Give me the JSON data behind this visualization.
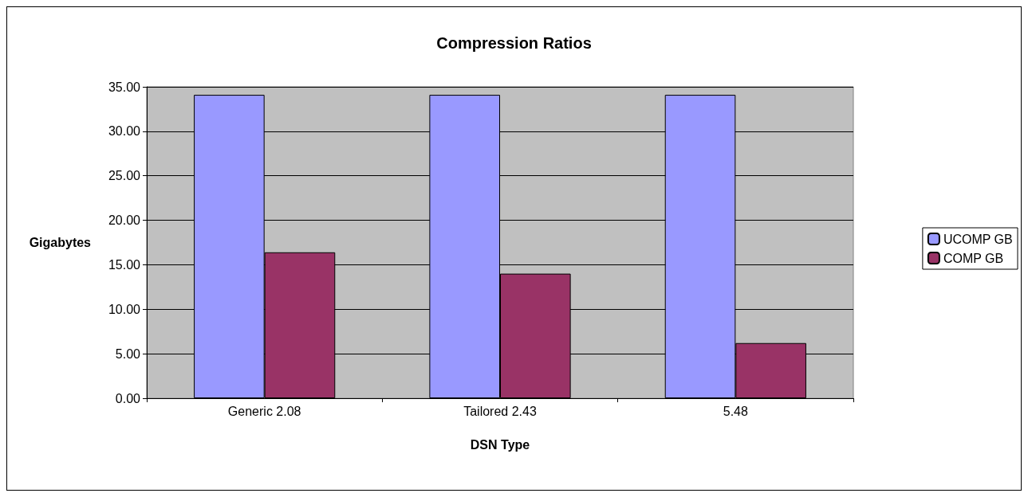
{
  "chart_data": {
    "type": "bar",
    "title": "Compression Ratios",
    "xlabel": "DSN Type",
    "ylabel": "Gigabytes",
    "categories": [
      "Generic 2.08",
      "Tailored 2.43",
      "5.48"
    ],
    "series": [
      {
        "name": "UCOMP GB",
        "color": "#9999ff",
        "values": [
          34.1,
          34.1,
          34.1
        ]
      },
      {
        "name": "COMP GB",
        "color": "#993366",
        "values": [
          16.4,
          14.0,
          6.2
        ]
      }
    ],
    "ylim": [
      0,
      35
    ],
    "yticks": [
      {
        "value": 0,
        "label": "0.00"
      },
      {
        "value": 5,
        "label": "5.00"
      },
      {
        "value": 10,
        "label": "10.00"
      },
      {
        "value": 15,
        "label": "15.00"
      },
      {
        "value": 20,
        "label": "20.00"
      },
      {
        "value": 25,
        "label": "25.00"
      },
      {
        "value": 30,
        "label": "30.00"
      },
      {
        "value": 35,
        "label": "35.00"
      }
    ],
    "grid": "y",
    "legend": "right"
  }
}
